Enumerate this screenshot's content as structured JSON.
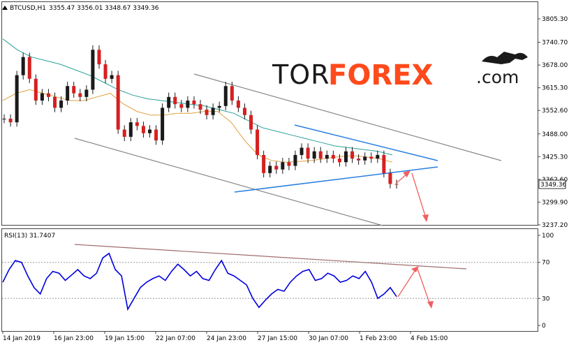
{
  "header": {
    "symbol": "BTCUSD,H1",
    "ohlc": "3355.47 3356.01 3348.67 3349.36"
  },
  "logo": {
    "part1": "TOR",
    "part2": "FOREX",
    "part3": ".com"
  },
  "rsi_header": "RSI(13) 31.7407",
  "chart_data": [
    {
      "type": "candlestick",
      "title": "BTCUSD,H1",
      "ylim": [
        3237.2,
        3805.3
      ],
      "y_ticks": [
        "3805.30",
        "3740.70",
        "3678.00",
        "3615.30",
        "3552.60",
        "3488.00",
        "3425.30",
        "3362.60",
        "3299.90",
        "3237.20"
      ],
      "current_price": "3349.36",
      "x_ticks": [
        "14 Jan 2019",
        "16 Jan 23:00",
        "19 Jan 15:00",
        "22 Jan 07:00",
        "24 Jan 23:00",
        "27 Jan 15:00",
        "30 Jan 07:00",
        "1 Feb 23:00",
        "4 Feb 15:00"
      ],
      "price_series": [
        3530,
        3520,
        3650,
        3700,
        3640,
        3580,
        3600,
        3590,
        3560,
        3580,
        3620,
        3600,
        3590,
        3610,
        3720,
        3680,
        3640,
        3650,
        3500,
        3480,
        3520,
        3510,
        3490,
        3500,
        3470,
        3560,
        3590,
        3570,
        3560,
        3580,
        3570,
        3555,
        3540,
        3560,
        3565,
        3620,
        3580,
        3560,
        3540,
        3500,
        3430,
        3380,
        3400,
        3390,
        3410,
        3400,
        3430,
        3450,
        3420,
        3440,
        3420,
        3430,
        3420,
        3410,
        3440,
        3420,
        3415,
        3425,
        3420,
        3430,
        3380,
        3350,
        3349.36
      ],
      "moving_average_fast": [
        3580,
        3600,
        3610,
        3600,
        3590,
        3580,
        3580,
        3590,
        3600,
        3570,
        3550,
        3540,
        3540,
        3545,
        3545,
        3550,
        3550,
        3520,
        3470,
        3430,
        3415,
        3410,
        3412,
        3415,
        3420,
        3425,
        3428,
        3425,
        3420,
        3410
      ],
      "moving_average_slow": [
        3750,
        3720,
        3700,
        3690,
        3680,
        3665,
        3650,
        3630,
        3610,
        3595,
        3585,
        3580,
        3575,
        3570,
        3565,
        3555,
        3545,
        3525,
        3505,
        3495,
        3485,
        3475,
        3465,
        3455,
        3450,
        3445,
        3440,
        3430
      ]
    },
    {
      "type": "line",
      "title": "RSI(13) 31.7407",
      "ylim": [
        0,
        100
      ],
      "y_ticks": [
        "100",
        "70",
        "30",
        "0"
      ],
      "levels": [
        70,
        30
      ],
      "values": [
        48,
        62,
        72,
        70,
        55,
        42,
        35,
        52,
        60,
        58,
        50,
        56,
        62,
        55,
        52,
        58,
        75,
        80,
        62,
        55,
        18,
        30,
        42,
        48,
        52,
        55,
        50,
        60,
        68,
        62,
        55,
        60,
        52,
        50,
        62,
        72,
        58,
        55,
        50,
        45,
        30,
        20,
        28,
        35,
        40,
        38,
        48,
        55,
        60,
        62,
        50,
        52,
        58,
        55,
        48,
        50,
        55,
        52,
        60,
        48,
        30,
        35,
        42,
        32
      ]
    }
  ]
}
